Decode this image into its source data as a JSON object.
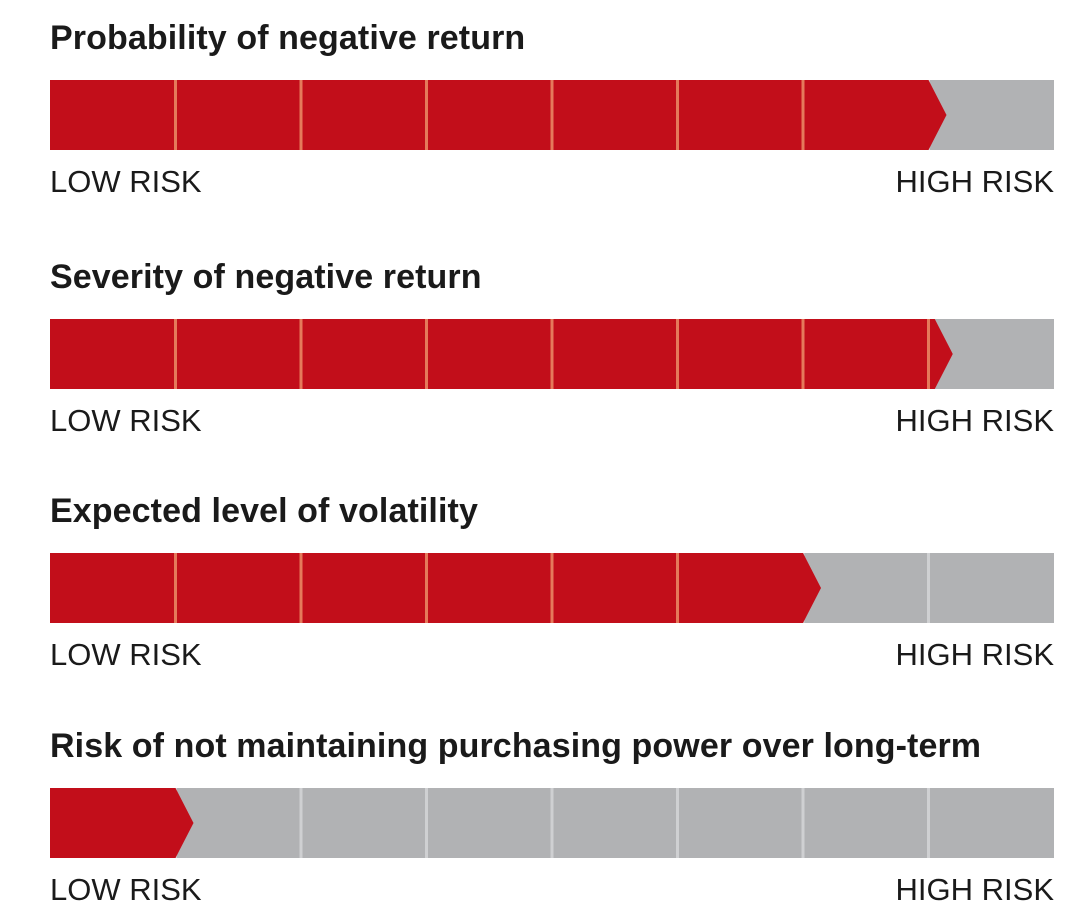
{
  "colors": {
    "filled": "#c20e1a",
    "empty": "#b1b2b4",
    "divider_on_filled": "#e5795b",
    "divider_on_empty": "#cfd0d2"
  },
  "chart_data": {
    "type": "bar",
    "segments_per_scale": 8,
    "gauges": [
      {
        "title": "Probability of negative return",
        "level": 7,
        "low_label": "LOW RISK",
        "high_label": "HIGH RISK"
      },
      {
        "title": "Severity of negative return",
        "level": 7.05,
        "low_label": "LOW RISK",
        "high_label": "HIGH RISK"
      },
      {
        "title": "Expected level of volatility",
        "level": 6,
        "low_label": "LOW RISK",
        "high_label": "HIGH RISK"
      },
      {
        "title": "Risk of not maintaining purchasing power over long-term",
        "level": 1,
        "low_label": "LOW RISK",
        "high_label": "HIGH RISK"
      }
    ]
  }
}
